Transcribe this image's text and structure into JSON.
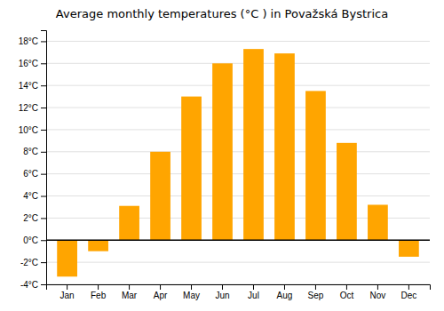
{
  "chart_data": {
    "type": "bar",
    "title": "Average monthly temperatures (°C ) in Považská Bystrica",
    "categories": [
      "Jan",
      "Feb",
      "Mar",
      "Apr",
      "May",
      "Jun",
      "Jul",
      "Aug",
      "Sep",
      "Oct",
      "Nov",
      "Dec"
    ],
    "values": [
      -3.3,
      -1.0,
      3.1,
      8.0,
      13.0,
      16.0,
      17.3,
      16.9,
      13.5,
      8.8,
      3.2,
      -1.5
    ],
    "color": "#FFA500",
    "ylim": [
      -4,
      19
    ],
    "yticks": [
      {
        "value": -4,
        "label": "-4°C"
      },
      {
        "value": -2,
        "label": "-2°C"
      },
      {
        "value": 0,
        "label": "0°C"
      },
      {
        "value": 2,
        "label": "2°C"
      },
      {
        "value": 4,
        "label": "4°C"
      },
      {
        "value": 6,
        "label": "6°C"
      },
      {
        "value": 8,
        "label": "8°C"
      },
      {
        "value": 10,
        "label": "10°C"
      },
      {
        "value": 12,
        "label": "12°C"
      },
      {
        "value": 14,
        "label": "14°C"
      },
      {
        "value": 16,
        "label": "16°C"
      },
      {
        "value": 18,
        "label": "18°C"
      }
    ],
    "grid": true
  }
}
